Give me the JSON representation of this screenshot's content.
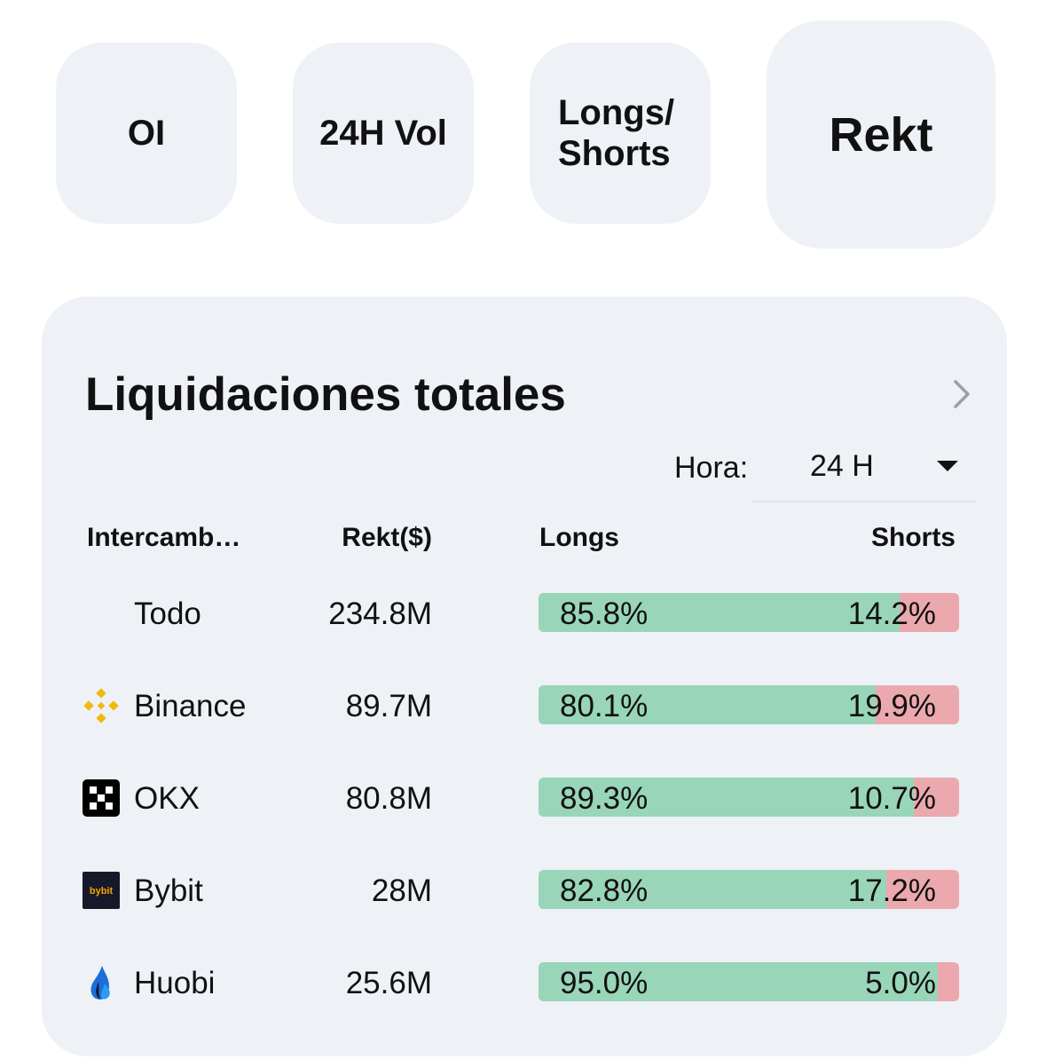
{
  "tabs": [
    {
      "label": "OI"
    },
    {
      "label": "24H Vol"
    },
    {
      "label": "Longs/ Shorts"
    },
    {
      "label": "Rekt"
    }
  ],
  "card": {
    "title": "Liquidaciones totales",
    "time_label": "Hora:",
    "time_value": "24 H"
  },
  "table": {
    "headers": {
      "exchange": "Intercamb…",
      "rekt": "Rekt($)",
      "longs": "Longs",
      "shorts": "Shorts"
    },
    "rows": [
      {
        "exchange": "Todo",
        "logo": "none",
        "rekt": "234.8M",
        "long_pct": 85.8,
        "long_label": "85.8%",
        "short_label": "14.2%"
      },
      {
        "exchange": "Binance",
        "logo": "binance-logo-icon",
        "rekt": "89.7M",
        "long_pct": 80.1,
        "long_label": "80.1%",
        "short_label": "19.9%"
      },
      {
        "exchange": "OKX",
        "logo": "okx-logo-icon",
        "rekt": "80.8M",
        "long_pct": 89.3,
        "long_label": "89.3%",
        "short_label": "10.7%"
      },
      {
        "exchange": "Bybit",
        "logo": "bybit-logo-icon",
        "logo_text": "bybit",
        "rekt": "28M",
        "long_pct": 82.8,
        "long_label": "82.8%",
        "short_label": "17.2%"
      },
      {
        "exchange": "Huobi",
        "logo": "huobi-logo-icon",
        "rekt": "25.6M",
        "long_pct": 95.0,
        "long_label": "95.0%",
        "short_label": "5.0%"
      }
    ]
  },
  "colors": {
    "long": "#99d5b9",
    "short": "#eba9ae",
    "surface": "#eef1f6",
    "binance": "#f0b90b",
    "huobi": "#1c6ed8"
  }
}
